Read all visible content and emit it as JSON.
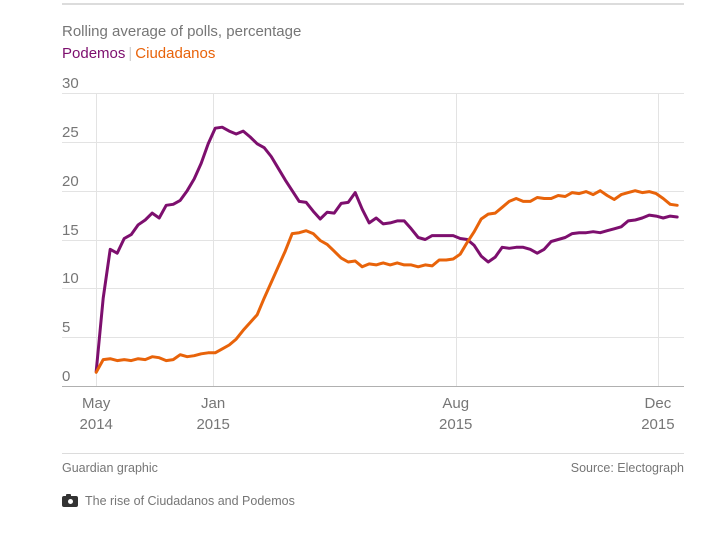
{
  "page": {
    "title": "Rolling average of polls, percentage",
    "legend_separator": "|",
    "footer": {
      "credit": "Guardian graphic",
      "source": "Source: Electograph"
    },
    "caption": {
      "icon": "camera-icon",
      "text": "The rise of Ciudadanos and Podemos"
    }
  },
  "chart_data": {
    "type": "line",
    "title": "Rolling average of polls, percentage",
    "xlabel": "",
    "ylabel": "",
    "ylim": [
      0,
      30
    ],
    "y_ticks": [
      30,
      25,
      20,
      15,
      10,
      5,
      0
    ],
    "grid": "horizontal gridlines + vertical lines at labeled ticks, y labels above lines, left-aligned",
    "legend_position": "top-left, colored text labels",
    "x_axis_note": "polls are irregularly spaced in time; tick positions given as fraction of plot width",
    "x_ticks": [
      {
        "line1": "May",
        "line2": "2014",
        "pos": 0.055
      },
      {
        "line1": "Jan",
        "line2": "2015",
        "pos": 0.243
      },
      {
        "line1": "Aug",
        "line2": "2015",
        "pos": 0.633
      },
      {
        "line1": "Dec",
        "line2": "2015",
        "pos": 0.958
      }
    ],
    "series_x_range": [
      0.055,
      0.989
    ],
    "series": [
      {
        "name": "Podemos",
        "color": "#7d0f6e",
        "values": [
          1.5,
          9,
          14,
          13.6,
          15.1,
          15.5,
          16.5,
          17,
          17.7,
          17.2,
          18.5,
          18.6,
          19,
          20,
          21.2,
          22.8,
          24.8,
          26.4,
          26.5,
          26.1,
          25.8,
          26.1,
          25.5,
          24.8,
          24.4,
          23.5,
          22.3,
          21.1,
          20,
          18.9,
          18.8,
          17.9,
          17.1,
          17.8,
          17.7,
          18.7,
          18.8,
          19.8,
          18.1,
          16.7,
          17.2,
          16.6,
          16.7,
          16.9,
          16.9,
          16.1,
          15.2,
          15,
          15.4,
          15.4,
          15.4,
          15.4,
          15.1,
          15,
          14.4,
          13.3,
          12.7,
          13.2,
          14.2,
          14.1,
          14.2,
          14.2,
          14,
          13.6,
          14,
          14.8,
          15,
          15.2,
          15.6,
          15.7,
          15.7,
          15.8,
          15.7,
          15.9,
          16.1,
          16.3,
          16.9,
          17,
          17.2,
          17.5,
          17.4,
          17.2,
          17.4,
          17.3
        ]
      },
      {
        "name": "Ciudadanos",
        "color": "#e8630a",
        "values": [
          1.4,
          2.7,
          2.8,
          2.6,
          2.7,
          2.6,
          2.8,
          2.7,
          3,
          2.9,
          2.6,
          2.7,
          3.2,
          3,
          3.1,
          3.3,
          3.4,
          3.4,
          3.8,
          4.2,
          4.8,
          5.7,
          6.5,
          7.3,
          9,
          10.6,
          12.2,
          13.8,
          15.6,
          15.7,
          15.9,
          15.6,
          14.9,
          14.5,
          13.8,
          13.1,
          12.7,
          12.8,
          12.2,
          12.5,
          12.4,
          12.6,
          12.4,
          12.6,
          12.4,
          12.4,
          12.2,
          12.4,
          12.3,
          12.9,
          12.9,
          13,
          13.5,
          14.7,
          15.8,
          17.1,
          17.6,
          17.7,
          18.3,
          18.9,
          19.2,
          18.9,
          18.9,
          19.3,
          19.2,
          19.2,
          19.5,
          19.4,
          19.8,
          19.7,
          19.9,
          19.6,
          20,
          19.5,
          19.1,
          19.6,
          19.8,
          20,
          19.8,
          19.9,
          19.7,
          19.2,
          18.6,
          18.5
        ]
      }
    ]
  }
}
